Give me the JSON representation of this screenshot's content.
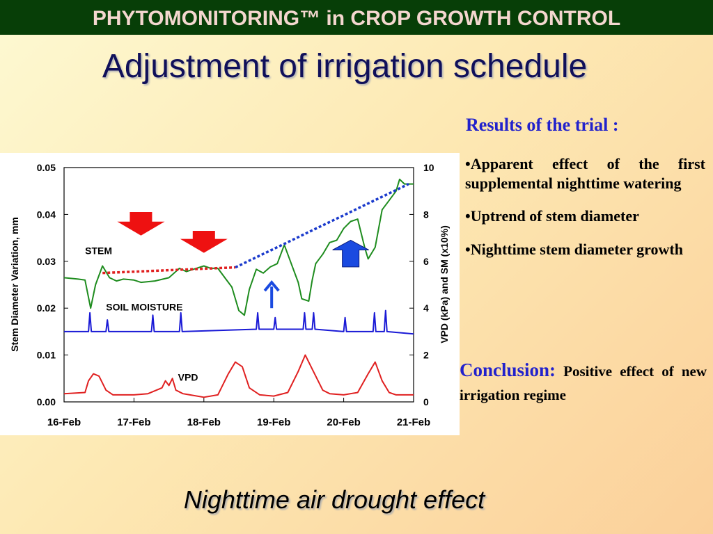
{
  "slide": {
    "banner": "PHYTOMONITORING™ in CROP GROWTH CONTROL",
    "title": "Adjustment of irrigation schedule",
    "results_heading": "Results of the trial :",
    "bullets": [
      "•Apparent effect of the first supplemental nighttime watering",
      "•Uptrend of stem diameter",
      "•Nighttime stem diameter growth"
    ],
    "conclusion_label": "Conclusion:",
    "conclusion_text": "Positive effect of new irrigation regime",
    "footer_caption": "Nighttime air drought effect"
  },
  "chart_data": {
    "type": "line",
    "xlabel": "",
    "ylabel": "Stem Diameter Variation, mm",
    "y2label": "VPD (kPa) and SM (x10%)",
    "ylim": [
      0,
      0.05
    ],
    "y2lim": [
      0,
      10
    ],
    "xlim": [
      0,
      5
    ],
    "grid": false,
    "x_ticks": [
      "16-Feb",
      "17-Feb",
      "18-Feb",
      "19-Feb",
      "20-Feb",
      "21-Feb"
    ],
    "y_ticks": [
      "0.00",
      "0.01",
      "0.02",
      "0.03",
      "0.04",
      "0.05"
    ],
    "y2_ticks": [
      "0",
      "2",
      "4",
      "6",
      "8",
      "10"
    ],
    "colors": {
      "stem": "#1e8c1e",
      "soil": "#1a1ad6",
      "vpd": "#e02020",
      "trend_red": "#e02020",
      "trend_blue": "#1a3acc",
      "arrow_red": "#ee1111",
      "arrow_blue": "#1a4ae0"
    },
    "series": [
      {
        "name": "STEM",
        "axis": "left",
        "x": [
          0,
          0.2,
          0.3,
          0.38,
          0.45,
          0.55,
          0.65,
          0.75,
          0.85,
          1.0,
          1.1,
          1.3,
          1.5,
          1.65,
          1.75,
          1.85,
          2.0,
          2.1,
          2.2,
          2.3,
          2.4,
          2.5,
          2.58,
          2.65,
          2.75,
          2.85,
          2.95,
          3.05,
          3.15,
          3.25,
          3.35,
          3.4,
          3.5,
          3.55,
          3.6,
          3.7,
          3.8,
          3.9,
          4.0,
          4.1,
          4.2,
          4.3,
          4.35,
          4.45,
          4.55,
          4.65,
          4.75,
          4.8,
          4.87,
          4.93,
          5.0
        ],
        "y": [
          0.0265,
          0.0262,
          0.026,
          0.02,
          0.025,
          0.029,
          0.0265,
          0.0258,
          0.0262,
          0.026,
          0.0255,
          0.0258,
          0.0265,
          0.0285,
          0.0278,
          0.0283,
          0.029,
          0.0285,
          0.0285,
          0.0265,
          0.0245,
          0.0195,
          0.0185,
          0.024,
          0.0283,
          0.0275,
          0.0288,
          0.0295,
          0.0335,
          0.0295,
          0.0255,
          0.022,
          0.0215,
          0.026,
          0.0295,
          0.0315,
          0.034,
          0.0345,
          0.037,
          0.0385,
          0.039,
          0.033,
          0.0305,
          0.033,
          0.041,
          0.043,
          0.045,
          0.0475,
          0.0465,
          0.0465,
          0.0465
        ]
      },
      {
        "name": "SOIL MOISTURE",
        "axis": "right",
        "x": [
          0,
          0.35,
          0.37,
          0.39,
          0.6,
          0.62,
          0.64,
          1.25,
          1.27,
          1.29,
          1.65,
          1.67,
          1.69,
          2.75,
          2.77,
          2.79,
          3.0,
          3.02,
          3.04,
          3.42,
          3.44,
          3.46,
          3.55,
          3.57,
          3.59,
          4.0,
          4.02,
          4.04,
          4.42,
          4.44,
          4.46,
          4.58,
          4.6,
          4.62,
          5.0
        ],
        "y": [
          3.0,
          3.0,
          3.8,
          3.0,
          3.0,
          3.5,
          3.0,
          3.0,
          3.7,
          3.0,
          3.0,
          3.8,
          3.0,
          3.1,
          3.8,
          3.1,
          3.1,
          3.6,
          3.1,
          3.1,
          3.8,
          3.1,
          3.1,
          3.8,
          3.1,
          3.0,
          3.6,
          3.0,
          3.0,
          3.8,
          3.0,
          3.0,
          3.9,
          3.0,
          2.9
        ]
      },
      {
        "name": "VPD",
        "axis": "right",
        "x": [
          0,
          0.3,
          0.35,
          0.42,
          0.5,
          0.6,
          0.7,
          0.8,
          1.0,
          1.2,
          1.4,
          1.45,
          1.5,
          1.55,
          1.6,
          1.7,
          1.8,
          2.0,
          2.2,
          2.35,
          2.45,
          2.55,
          2.65,
          2.8,
          3.0,
          3.2,
          3.35,
          3.45,
          3.55,
          3.7,
          3.8,
          4.0,
          4.2,
          4.35,
          4.45,
          4.55,
          4.65,
          4.75,
          5.0
        ],
        "y": [
          0.35,
          0.4,
          0.9,
          1.2,
          1.1,
          0.5,
          0.3,
          0.3,
          0.3,
          0.35,
          0.6,
          0.9,
          0.7,
          1.0,
          0.5,
          0.35,
          0.3,
          0.2,
          0.3,
          1.2,
          1.7,
          1.5,
          0.6,
          0.3,
          0.25,
          0.4,
          1.3,
          2.0,
          1.4,
          0.5,
          0.35,
          0.3,
          0.4,
          1.2,
          1.7,
          0.9,
          0.4,
          0.3,
          0.3
        ]
      }
    ],
    "annotations": [
      {
        "kind": "label",
        "text": "STEM",
        "x": 0.3,
        "axis": "left",
        "y": 0.0315
      },
      {
        "kind": "label",
        "text": "SOIL MOISTURE",
        "x": 0.6,
        "axis": "right",
        "y": 3.9
      },
      {
        "kind": "label",
        "text": "VPD",
        "x": 1.63,
        "axis": "right",
        "y": 0.9
      },
      {
        "kind": "trend",
        "color": "red",
        "points": [
          [
            0.55,
            0.0275
          ],
          [
            2.45,
            0.0287
          ]
        ]
      },
      {
        "kind": "trend",
        "color": "blue",
        "points": [
          [
            2.45,
            0.0287
          ],
          [
            4.93,
            0.0465
          ]
        ]
      },
      {
        "kind": "arrow",
        "direction": "down",
        "color": "red",
        "x": 1.1,
        "y_tip": 0.0355,
        "y_tail": 0.0405
      },
      {
        "kind": "arrow",
        "direction": "down",
        "color": "red",
        "x": 2.0,
        "y_tip": 0.0318,
        "y_tail": 0.0365
      },
      {
        "kind": "arrow",
        "direction": "up",
        "color": "blue",
        "x": 2.97,
        "y_tip": 0.0255,
        "y_tail": 0.02
      },
      {
        "kind": "arrow",
        "direction": "up",
        "color": "blue",
        "x": 4.1,
        "y_tip": 0.0345,
        "y_tail": 0.0288
      }
    ]
  }
}
